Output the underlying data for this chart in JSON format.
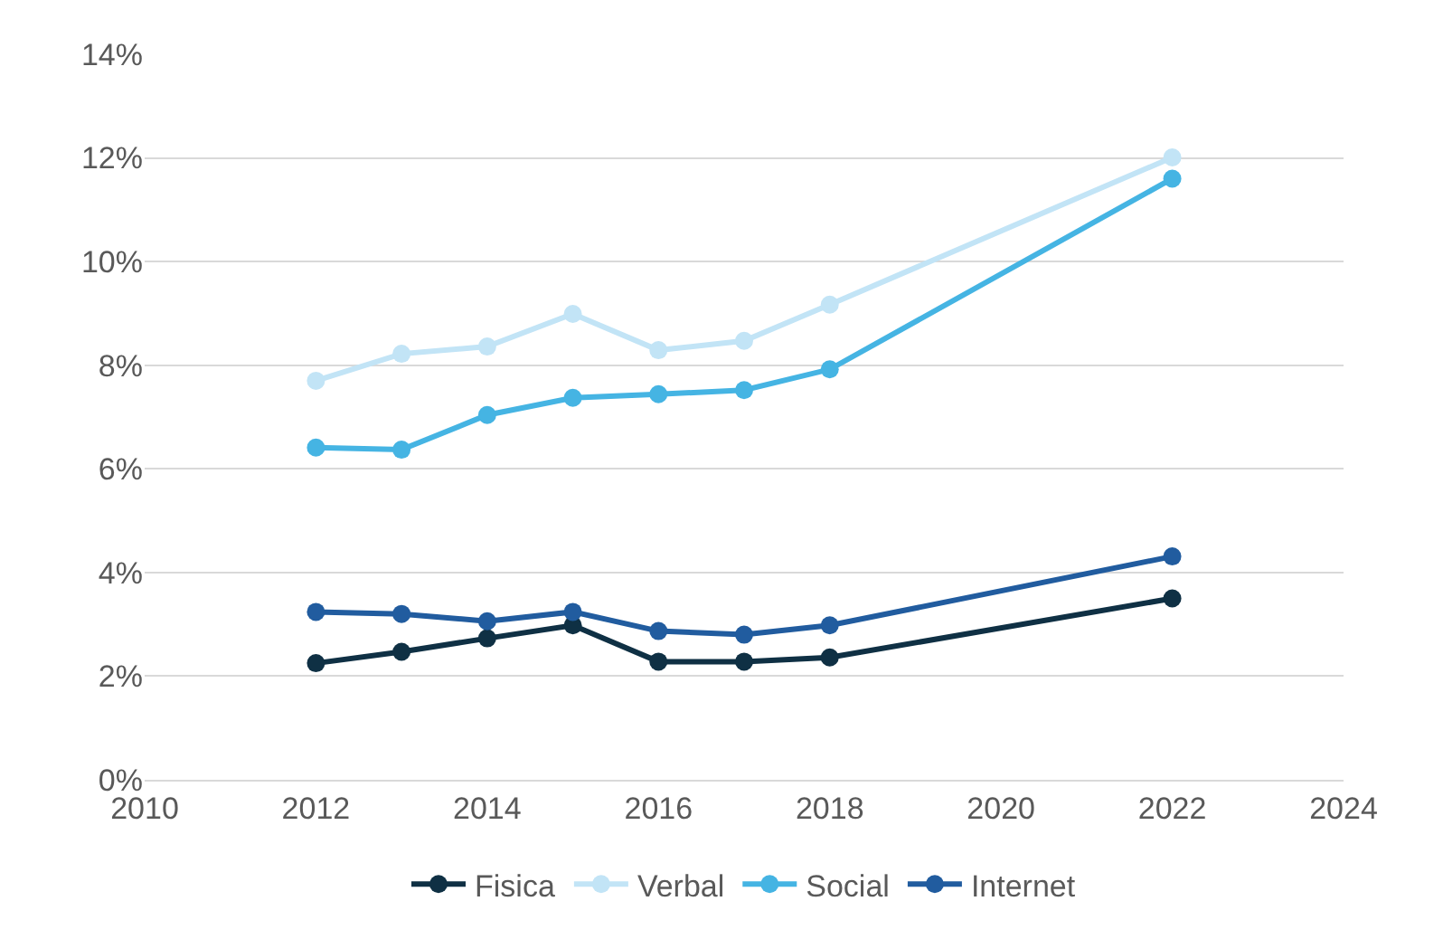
{
  "chart_data": {
    "type": "line",
    "x": [
      2012,
      2013,
      2014,
      2015,
      2016,
      2017,
      2018,
      2022
    ],
    "series": [
      {
        "name": "Fisica",
        "color": "#0f3044",
        "values": [
          2.25,
          2.47,
          2.73,
          2.98,
          2.28,
          2.28,
          2.36,
          3.5
        ]
      },
      {
        "name": "Verbal",
        "color": "#c2e4f6",
        "values": [
          7.7,
          8.22,
          8.36,
          8.99,
          8.29,
          8.47,
          9.17,
          12.01
        ]
      },
      {
        "name": "Social",
        "color": "#45b4e3",
        "values": [
          6.41,
          6.37,
          7.04,
          7.37,
          7.44,
          7.52,
          7.92,
          11.6
        ]
      },
      {
        "name": "Internet",
        "color": "#215c9f",
        "values": [
          3.24,
          3.2,
          3.06,
          3.24,
          2.87,
          2.8,
          2.98,
          4.31
        ]
      }
    ],
    "xlim": [
      2010,
      2024
    ],
    "xticks": [
      2010,
      2012,
      2014,
      2016,
      2018,
      2020,
      2022,
      2024
    ],
    "ylim": [
      0,
      14
    ],
    "yticks": [
      {
        "value": 0,
        "label": "0%"
      },
      {
        "value": 2,
        "label": "2%"
      },
      {
        "value": 4,
        "label": "4%"
      },
      {
        "value": 6,
        "label": "6%"
      },
      {
        "value": 8,
        "label": "8%"
      },
      {
        "value": 10,
        "label": "10%"
      },
      {
        "value": 12,
        "label": "12%"
      },
      {
        "value": 14,
        "label": "14%"
      }
    ],
    "grid": "y",
    "legend": "bottom",
    "marker": "circle",
    "line_style": "solid"
  }
}
